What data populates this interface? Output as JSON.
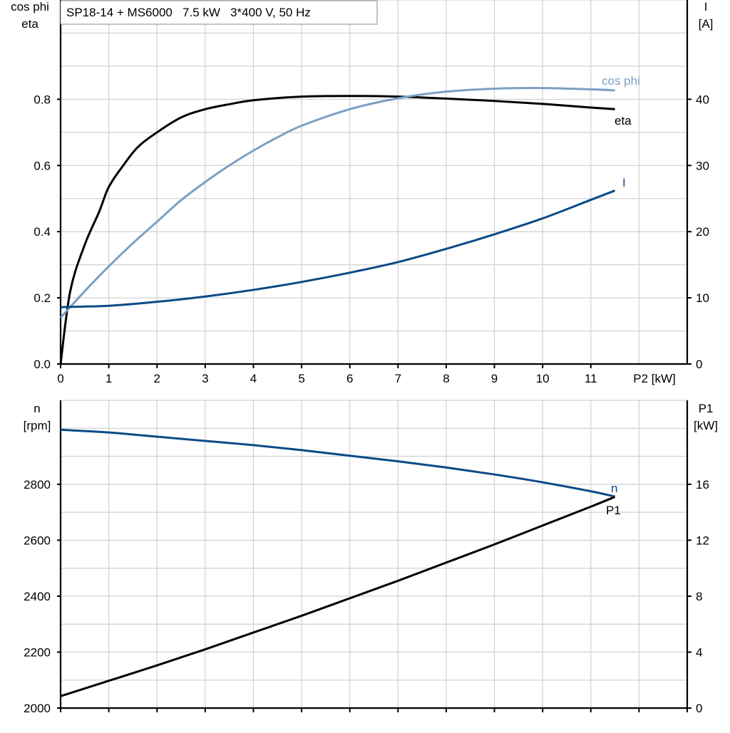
{
  "title": "SP18-14 + MS6000   7.5 kW   3*400 V, 50 Hz",
  "colors": {
    "eta": "#000000",
    "cos_phi": "#7aa0c4",
    "I": "#0b4a86",
    "n": "#0b4a86",
    "P1": "#000000",
    "grid": "#d3d3d3"
  },
  "chart_data": [
    {
      "type": "line",
      "xlabel": "P2 [kW]",
      "xlim": [
        0,
        13
      ],
      "xticks": [
        "0",
        "1",
        "2",
        "3",
        "4",
        "5",
        "6",
        "7",
        "8",
        "9",
        "10",
        "11"
      ],
      "ylabel_left": [
        "cos phi",
        "eta"
      ],
      "ylim_left": [
        0,
        1.1
      ],
      "yticks_left": [
        "0.0",
        "0.2",
        "0.4",
        "0.6",
        "0.8"
      ],
      "ylabel_right": [
        "I",
        "[A]"
      ],
      "ylim_right": [
        0,
        55
      ],
      "yticks_right": [
        "0",
        "10",
        "20",
        "30",
        "40"
      ],
      "grid": true,
      "series": [
        {
          "name": "eta",
          "axis": "left",
          "color": "#000000",
          "x": [
            0,
            0.2,
            0.5,
            0.8,
            1,
            1.3,
            1.6,
            2,
            2.5,
            3,
            3.5,
            4,
            5,
            6,
            7,
            8,
            9,
            10,
            11,
            11.5
          ],
          "y": [
            0,
            0.22,
            0.36,
            0.46,
            0.535,
            0.6,
            0.655,
            0.7,
            0.745,
            0.77,
            0.785,
            0.797,
            0.808,
            0.81,
            0.808,
            0.802,
            0.795,
            0.786,
            0.775,
            0.77
          ]
        },
        {
          "name": "cos phi",
          "axis": "left",
          "color": "#7aa0c4",
          "x": [
            0,
            0.5,
            1,
            1.5,
            2,
            2.5,
            3,
            3.5,
            4,
            4.5,
            5,
            6,
            7,
            8,
            9,
            10,
            11,
            11.5
          ],
          "y": [
            0.14,
            0.22,
            0.295,
            0.365,
            0.43,
            0.495,
            0.55,
            0.6,
            0.645,
            0.685,
            0.72,
            0.77,
            0.803,
            0.823,
            0.832,
            0.834,
            0.83,
            0.827
          ]
        },
        {
          "name": "I",
          "axis": "right",
          "color": "#0b4a86",
          "x": [
            0,
            1,
            2,
            3,
            4,
            5,
            6,
            7,
            8,
            9,
            10,
            11,
            11.5
          ],
          "y": [
            8.6,
            8.8,
            9.4,
            10.2,
            11.2,
            12.4,
            13.8,
            15.4,
            17.4,
            19.6,
            22,
            24.8,
            26.2
          ]
        }
      ]
    },
    {
      "type": "line",
      "xlim": [
        0,
        13
      ],
      "ylabel_left": [
        "n",
        "[rpm]"
      ],
      "ylim_left": [
        2000,
        3100
      ],
      "yticks_left": [
        "2000",
        "2200",
        "2400",
        "2600",
        "2800"
      ],
      "ylabel_right": [
        "P1",
        "[kW]"
      ],
      "ylim_right": [
        0,
        22
      ],
      "yticks_right": [
        "0",
        "4",
        "8",
        "12",
        "16"
      ],
      "grid": true,
      "series": [
        {
          "name": "n",
          "axis": "left",
          "color": "#0b4a86",
          "x": [
            0,
            1,
            2,
            3,
            4,
            5,
            6,
            7,
            8,
            9,
            10,
            11,
            11.5
          ],
          "y": [
            2995,
            2985,
            2970,
            2955,
            2940,
            2922,
            2902,
            2882,
            2860,
            2835,
            2807,
            2775,
            2756
          ]
        },
        {
          "name": "P1",
          "axis": "right",
          "color": "#000000",
          "x": [
            0,
            1,
            2,
            3,
            4,
            5,
            6,
            7,
            8,
            9,
            10,
            11,
            11.5
          ],
          "y": [
            0.85,
            1.95,
            3.05,
            4.2,
            5.4,
            6.6,
            7.85,
            9.1,
            10.4,
            11.7,
            13.05,
            14.4,
            15.1
          ]
        }
      ]
    }
  ]
}
